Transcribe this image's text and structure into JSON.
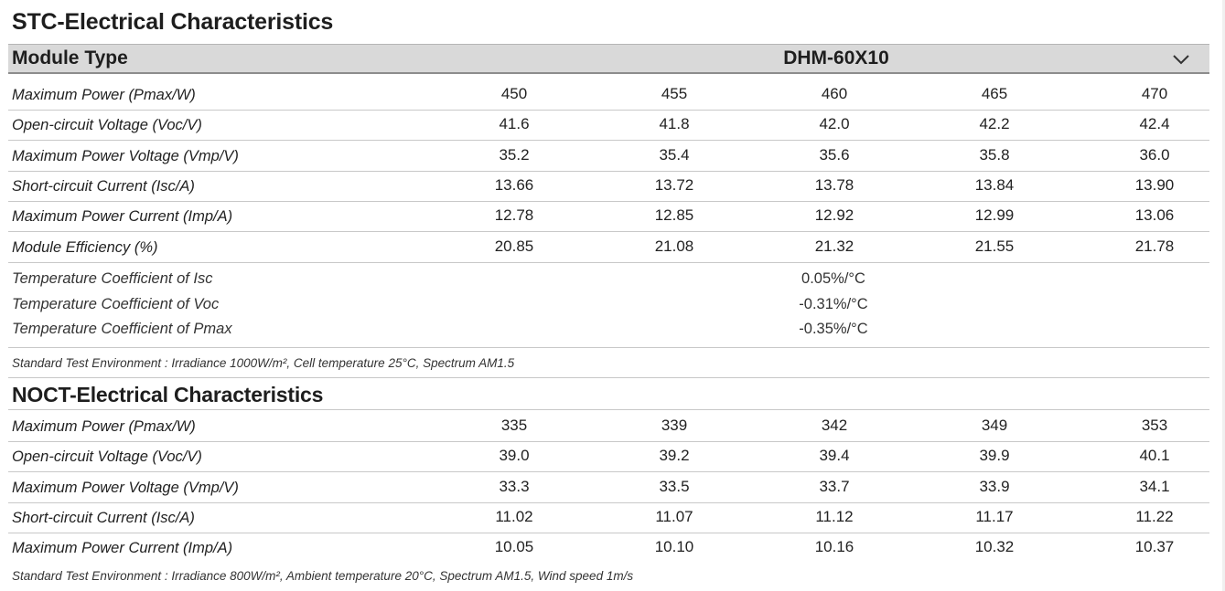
{
  "stc": {
    "title": "STC-Electrical Characteristics",
    "module_label": "Module Type",
    "module_value": "DHM-60X10",
    "rows": [
      {
        "label": "Maximum Power (Pmax/W)",
        "values": [
          "450",
          "455",
          "460",
          "465",
          "470"
        ]
      },
      {
        "label": "Open-circuit Voltage (Voc/V)",
        "values": [
          "41.6",
          "41.8",
          "42.0",
          "42.2",
          "42.4"
        ]
      },
      {
        "label": "Maximum Power Voltage (Vmp/V)",
        "values": [
          "35.2",
          "35.4",
          "35.6",
          "35.8",
          "36.0"
        ]
      },
      {
        "label": "Short-circuit Current (Isc/A)",
        "values": [
          "13.66",
          "13.72",
          "13.78",
          "13.84",
          "13.90"
        ]
      },
      {
        "label": "Maximum Power Current (Imp/A)",
        "values": [
          "12.78",
          "12.85",
          "12.92",
          "12.99",
          "13.06"
        ]
      },
      {
        "label": "Module Efficiency (%)",
        "values": [
          "20.85",
          "21.08",
          "21.32",
          "21.55",
          "21.78"
        ]
      }
    ],
    "temp_coeffs": [
      {
        "label": "Temperature Coefficient of Isc",
        "value": "0.05%/°C"
      },
      {
        "label": "Temperature Coefficient of Voc",
        "value": "-0.31%/°C"
      },
      {
        "label": "Temperature Coefficient of Pmax",
        "value": "-0.35%/°C"
      }
    ],
    "note": "Standard Test Environment : Irradiance 1000W/m², Cell temperature 25°C, Spectrum AM1.5"
  },
  "noct": {
    "title": "NOCT-Electrical Characteristics",
    "rows": [
      {
        "label": "Maximum Power (Pmax/W)",
        "values": [
          "335",
          "339",
          "342",
          "349",
          "353"
        ]
      },
      {
        "label": "Open-circuit Voltage (Voc/V)",
        "values": [
          "39.0",
          "39.2",
          "39.4",
          "39.9",
          "40.1"
        ]
      },
      {
        "label": "Maximum Power Voltage (Vmp/V)",
        "values": [
          "33.3",
          "33.5",
          "33.7",
          "33.9",
          "34.1"
        ]
      },
      {
        "label": "Short-circuit Current (Isc/A)",
        "values": [
          "11.02",
          "11.07",
          "11.12",
          "11.17",
          "11.22"
        ]
      },
      {
        "label": "Maximum Power Current (Imp/A)",
        "values": [
          "10.05",
          "10.10",
          "10.16",
          "10.32",
          "10.37"
        ]
      }
    ],
    "note": "Standard Test Environment : Irradiance 800W/m², Ambient temperature 20°C, Spectrum AM1.5, Wind speed 1m/s"
  },
  "icons": {
    "module_dropdown": "chevron-down-icon"
  }
}
